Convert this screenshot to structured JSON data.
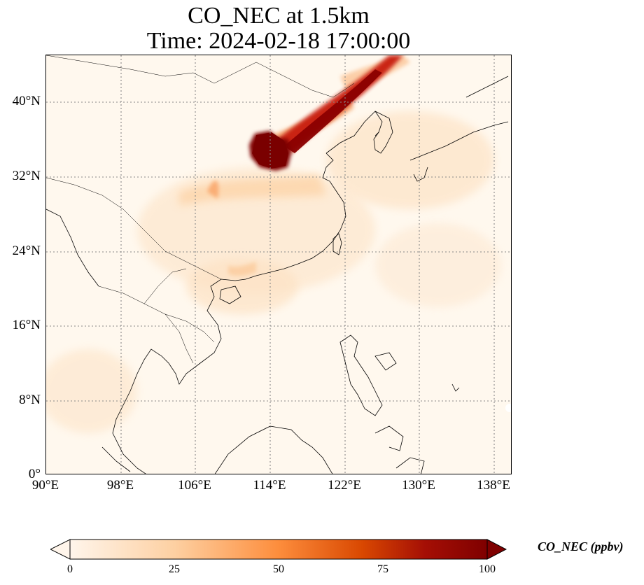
{
  "title": {
    "line1": "CO_NEC at 1.5km",
    "line2": "Time: 2024-02-18 17:00:00"
  },
  "map": {
    "lon_ticks": [
      "90°E",
      "98°E",
      "106°E",
      "114°E",
      "122°E",
      "130°E",
      "138°E"
    ],
    "lat_ticks": [
      "40°N",
      "32°N",
      "24°N",
      "16°N",
      "8°N",
      "0°"
    ],
    "lon_range": [
      90,
      140
    ],
    "lat_range": [
      0,
      45
    ],
    "background_color": "#fff8ee",
    "gridline_color": "#888888"
  },
  "colorbar": {
    "label": "CO_NEC (ppbv)",
    "ticks": [
      "0",
      "25",
      "50",
      "75",
      "100"
    ],
    "range": [
      0,
      100
    ],
    "colormap": [
      "#fff5eb",
      "#fdd0a2",
      "#fd8d3c",
      "#d94801",
      "#a50f05",
      "#7f0000"
    ]
  }
}
